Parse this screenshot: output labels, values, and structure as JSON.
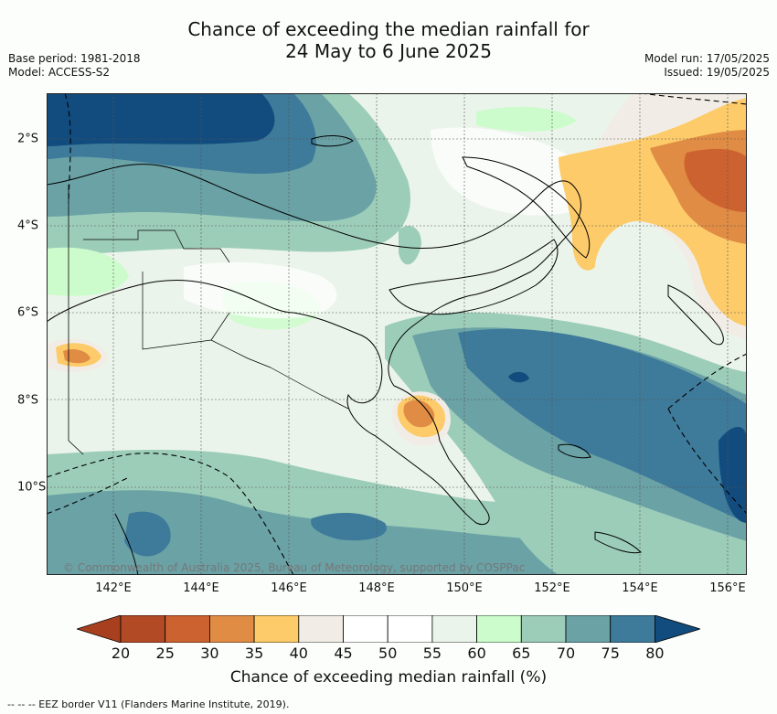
{
  "title_line1": "Chance of exceeding the median rainfall for",
  "title_line2": "24 May to 6 June 2025",
  "meta_left": [
    "Base period: 1981-2018",
    "Model: ACCESS-S2"
  ],
  "meta_right": [
    "Model run: 17/05/2025",
    "Issued: 19/05/2025"
  ],
  "longitude_ticks": [
    "142°E",
    "144°E",
    "146°E",
    "148°E",
    "150°E",
    "152°E",
    "154°E",
    "156°E"
  ],
  "latitude_ticks": [
    "2°S",
    "4°S",
    "6°S",
    "8°S",
    "10°S"
  ],
  "copyright": "© Commonwealth of Australia 2025, Bureau of Meteorology, supported by COSPPac",
  "colorbar": {
    "labels": [
      "20",
      "25",
      "30",
      "35",
      "40",
      "45",
      "50",
      "55",
      "60",
      "65",
      "70",
      "75",
      "80"
    ],
    "colors": [
      "#a8401f",
      "#b24a26",
      "#cc6230",
      "#e08c44",
      "#fdcb69",
      "#f1ede6",
      "#ffffff",
      "#ffffff",
      "#ebf4ea",
      "#ccfccc",
      "#9ccdb9",
      "#6aa2a6",
      "#3e7a9a",
      "#124c7e"
    ],
    "title": "Chance of exceeding median rainfall (%)"
  },
  "footer": "-- -- -- EEZ border V11 (Flanders Marine Institute, 2019)."
}
